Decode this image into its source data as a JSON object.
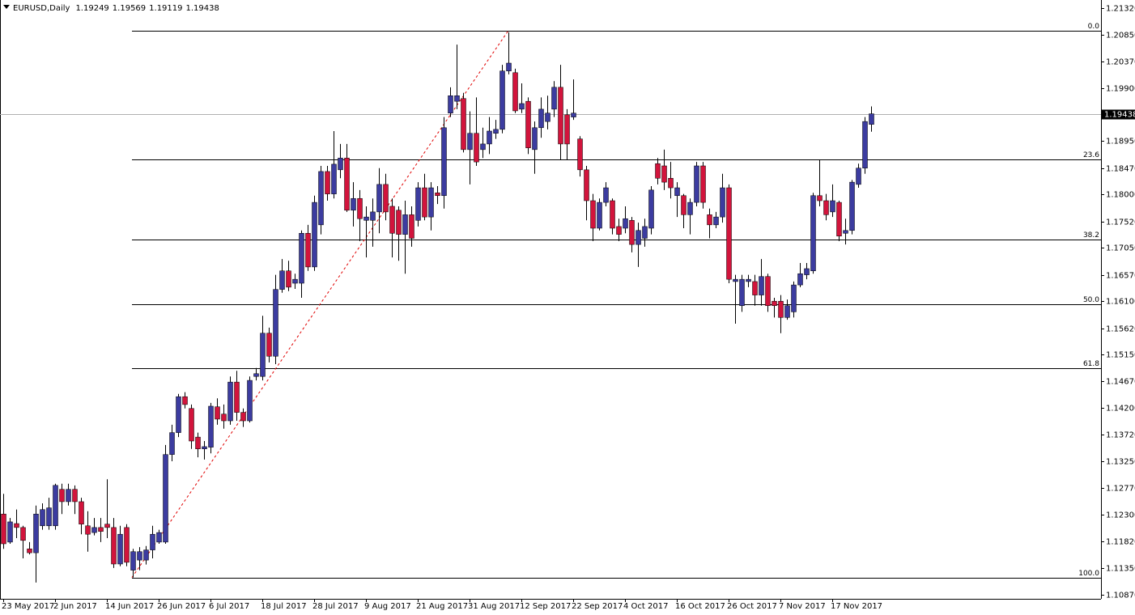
{
  "chart_data": {
    "type": "candlestick",
    "title": "EURUSD,Daily",
    "header_values": [
      1.19249,
      1.19569,
      1.19119,
      1.19438
    ],
    "current_price": 1.19438,
    "up_color": "#3c3ca0",
    "down_color": "#d2143c",
    "ylim": [
      1.108,
      1.21464
    ],
    "yticks": [
      {
        "value": 1.2132,
        "label": "1.21320"
      },
      {
        "value": 1.2085,
        "label": "1.20850"
      },
      {
        "value": 1.2037,
        "label": "1.20370"
      },
      {
        "value": 1.199,
        "label": "1.19900"
      },
      {
        "value": 1.1895,
        "label": "1.18950"
      },
      {
        "value": 1.1847,
        "label": "1.18470"
      },
      {
        "value": 1.18,
        "label": "1.18000"
      },
      {
        "value": 1.1752,
        "label": "1.17520"
      },
      {
        "value": 1.1705,
        "label": "1.17050"
      },
      {
        "value": 1.1657,
        "label": "1.16570"
      },
      {
        "value": 1.161,
        "label": "1.16100"
      },
      {
        "value": 1.1562,
        "label": "1.15620"
      },
      {
        "value": 1.1515,
        "label": "1.15150"
      },
      {
        "value": 1.1467,
        "label": "1.14670"
      },
      {
        "value": 1.142,
        "label": "1.14200"
      },
      {
        "value": 1.1372,
        "label": "1.13720"
      },
      {
        "value": 1.1325,
        "label": "1.13250"
      },
      {
        "value": 1.1277,
        "label": "1.12770"
      },
      {
        "value": 1.123,
        "label": "1.12300"
      },
      {
        "value": 1.1182,
        "label": "1.11820"
      },
      {
        "value": 1.1135,
        "label": "1.11350"
      },
      {
        "value": 1.1087,
        "label": "1.10870"
      }
    ],
    "fib_levels": [
      {
        "label": "0.0",
        "value": 1.2092
      },
      {
        "label": "23.6",
        "value": 1.1862
      },
      {
        "label": "38.2",
        "value": 1.172
      },
      {
        "label": "50.0",
        "value": 1.1605
      },
      {
        "label": "61.8",
        "value": 1.149
      },
      {
        "label": "100.0",
        "value": 1.1118
      }
    ],
    "categories": [
      "23 May 2017",
      null,
      null,
      null,
      null,
      null,
      null,
      null,
      "2 Jun 2017",
      null,
      null,
      null,
      null,
      null,
      null,
      null,
      "14 Jun 2017",
      null,
      null,
      null,
      null,
      null,
      null,
      null,
      "26 Jun 2017",
      null,
      null,
      null,
      null,
      null,
      null,
      null,
      "6 Jul 2017",
      null,
      null,
      null,
      null,
      null,
      null,
      null,
      "18 Jul 2017",
      null,
      null,
      null,
      null,
      null,
      null,
      null,
      "28 Jul 2017",
      null,
      null,
      null,
      null,
      null,
      null,
      null,
      "9 Aug 2017",
      null,
      null,
      null,
      null,
      null,
      null,
      null,
      "21 Aug 2017",
      null,
      null,
      null,
      null,
      null,
      null,
      null,
      "31 Aug 2017",
      null,
      null,
      null,
      null,
      null,
      null,
      null,
      "12 Sep 2017",
      null,
      null,
      null,
      null,
      null,
      null,
      null,
      "22 Sep 2017",
      null,
      null,
      null,
      null,
      null,
      null,
      null,
      "4 Oct 2017",
      null,
      null,
      null,
      null,
      null,
      null,
      null,
      "16 Oct 2017",
      null,
      null,
      null,
      null,
      null,
      null,
      null,
      "26 Oct 2017",
      null,
      null,
      null,
      null,
      null,
      null,
      null,
      "7 Nov 2017",
      null,
      null,
      null,
      null,
      null,
      null,
      null,
      "17 Nov 2017",
      null,
      null,
      null,
      null,
      null,
      null
    ],
    "open": [
      1.1231,
      1.1181,
      1.1214,
      1.1207,
      1.1169,
      1.1162,
      1.121,
      1.121,
      1.121,
      1.1275,
      1.1253,
      1.1275,
      1.1253,
      1.121,
      1.1198,
      1.1207,
      1.1213,
      1.1207,
      1.1142,
      1.1207,
      1.1131,
      1.1149,
      1.1149,
      1.1167,
      1.1181,
      1.1181,
      1.1337,
      1.1376,
      1.144,
      1.1419,
      1.1368,
      1.1347,
      1.135,
      1.1422,
      1.1409,
      1.1397,
      1.1466,
      1.1412,
      1.1397,
      1.1476,
      1.1476,
      1.1553,
      1.1512,
      1.1631,
      1.1664,
      1.1642,
      1.1642,
      1.1731,
      1.1671,
      1.1746,
      1.1841,
      1.1801,
      1.1844,
      1.1865,
      1.1772,
      1.1793,
      1.1754,
      1.1754,
      1.1769,
      1.1818,
      1.1779,
      1.1772,
      1.1729,
      1.1764,
      1.1754,
      1.1812,
      1.176,
      1.1803,
      1.1798,
      1.1945,
      1.1966,
      1.1971,
      1.188,
      1.1909,
      1.188,
      1.189,
      1.1909,
      1.1916,
      1.202,
      1.2017,
      1.1952,
      1.1966,
      1.188,
      1.1919,
      1.193,
      1.1952,
      1.1991,
      1.1942,
      1.1938,
      1.1899,
      1.1844,
      1.1789,
      1.174,
      1.1786,
      1.1789,
      1.1743,
      1.174,
      1.1754,
      1.1711,
      1.1722,
      1.174,
      1.1855,
      1.1851,
      1.1829,
      1.1798,
      1.1798,
      1.1764,
      1.1786,
      1.1851,
      1.1764,
      1.1746,
      1.176,
      1.1812,
      1.1645,
      1.1602,
      1.1645,
      1.1645,
      1.1621,
      1.1654,
      1.161,
      1.161,
      1.1581,
      1.1591,
      1.1639,
      1.1657,
      1.1664,
      1.1798,
      1.1789,
      1.1769,
      1.1786,
      1.1731,
      1.1736,
      1.1818,
      1.1847,
      1.19249
    ],
    "high": [
      1.1267,
      1.1224,
      1.1239,
      1.121,
      1.1181,
      1.1246,
      1.125,
      1.126,
      1.1285,
      1.1285,
      1.1285,
      1.1282,
      1.126,
      1.1236,
      1.1224,
      1.1224,
      1.1293,
      1.1224,
      1.121,
      1.1213,
      1.1169,
      1.1172,
      1.1174,
      1.121,
      1.1203,
      1.1354,
      1.139,
      1.1445,
      1.1448,
      1.1426,
      1.1376,
      1.1361,
      1.1429,
      1.1437,
      1.1426,
      1.1476,
      1.1486,
      1.1419,
      1.1476,
      1.1491,
      1.1584,
      1.1563,
      1.1657,
      1.1685,
      1.1682,
      1.1659,
      1.1736,
      1.1746,
      1.1798,
      1.1851,
      1.1851,
      1.1913,
      1.189,
      1.189,
      1.1822,
      1.1808,
      1.1779,
      1.1793,
      1.1847,
      1.1837,
      1.1793,
      1.1779,
      1.1789,
      1.1779,
      1.1822,
      1.1837,
      1.1822,
      1.1815,
      1.1938,
      1.1991,
      1.2067,
      1.1981,
      1.1948,
      1.1973,
      1.1919,
      1.1938,
      1.1933,
      1.2031,
      1.2089,
      1.2024,
      1.1998,
      1.1973,
      1.193,
      1.1973,
      1.1976,
      1.2002,
      1.2031,
      1.1952,
      1.2005,
      1.1904,
      1.1851,
      1.1801,
      1.1793,
      1.1822,
      1.1793,
      1.1757,
      1.1779,
      1.176,
      1.175,
      1.1757,
      1.1815,
      1.1865,
      1.188,
      1.1858,
      1.1822,
      1.1801,
      1.1793,
      1.1858,
      1.1858,
      1.1775,
      1.1769,
      1.1837,
      1.1818,
      1.1657,
      1.1657,
      1.1657,
      1.1657,
      1.1685,
      1.1659,
      1.1616,
      1.1621,
      1.1613,
      1.1645,
      1.1678,
      1.1678,
      1.1803,
      1.1861,
      1.1801,
      1.1818,
      1.1789,
      1.1757,
      1.1826,
      1.1855,
      1.1938,
      1.19569
    ],
    "low": [
      1.1169,
      1.1178,
      1.1188,
      1.1152,
      1.1159,
      1.1109,
      1.1203,
      1.1203,
      1.1203,
      1.1231,
      1.1246,
      1.1231,
      1.1195,
      1.1164,
      1.1193,
      1.1181,
      1.1188,
      1.1135,
      1.1138,
      1.1138,
      1.1118,
      1.1131,
      1.1141,
      1.1152,
      1.1178,
      1.1178,
      1.1325,
      1.1368,
      1.1419,
      1.1347,
      1.1332,
      1.1328,
      1.1339,
      1.139,
      1.1383,
      1.139,
      1.1397,
      1.1386,
      1.1394,
      1.1469,
      1.1469,
      1.1501,
      1.1498,
      1.1625,
      1.1628,
      1.1632,
      1.1616,
      1.1664,
      1.1664,
      1.1729,
      1.1789,
      1.1793,
      1.1829,
      1.1769,
      1.1743,
      1.1717,
      1.1688,
      1.1707,
      1.1731,
      1.1754,
      1.1688,
      1.1682,
      1.1659,
      1.1707,
      1.1743,
      1.1754,
      1.1736,
      1.1783,
      1.1775,
      1.1938,
      1.1952,
      1.1875,
      1.1818,
      1.1851,
      1.1865,
      1.1872,
      1.1899,
      1.1909,
      1.2014,
      1.1945,
      1.1945,
      1.1872,
      1.1837,
      1.1901,
      1.1916,
      1.1938,
      1.1861,
      1.1861,
      1.1933,
      1.1832,
      1.1754,
      1.1717,
      1.1736,
      1.1779,
      1.1729,
      1.1717,
      1.1731,
      1.1697,
      1.1671,
      1.1707,
      1.1729,
      1.1818,
      1.1808,
      1.1793,
      1.176,
      1.174,
      1.1729,
      1.1779,
      1.1775,
      1.1722,
      1.174,
      1.175,
      1.1642,
      1.157,
      1.1591,
      1.1635,
      1.1602,
      1.1602,
      1.1591,
      1.1581,
      1.1553,
      1.1577,
      1.1581,
      1.1635,
      1.1649,
      1.1659,
      1.1779,
      1.1754,
      1.176,
      1.1717,
      1.1711,
      1.1729,
      1.1812,
      1.1837,
      1.19119
    ],
    "close": [
      1.1178,
      1.1217,
      1.1207,
      1.1184,
      1.1162,
      1.1231,
      1.1239,
      1.1242,
      1.1282,
      1.1253,
      1.1275,
      1.1253,
      1.1213,
      1.1195,
      1.1207,
      1.12,
      1.1207,
      1.1142,
      1.1195,
      1.1145,
      1.1164,
      1.1164,
      1.1167,
      1.1195,
      1.1198,
      1.1337,
      1.1376,
      1.144,
      1.1426,
      1.1361,
      1.1347,
      1.1351,
      1.1423,
      1.14,
      1.1397,
      1.1466,
      1.1412,
      1.1397,
      1.1469,
      1.1481,
      1.1553,
      1.1512,
      1.1631,
      1.1664,
      1.1635,
      1.1649,
      1.1731,
      1.1671,
      1.1786,
      1.1841,
      1.1801,
      1.1854,
      1.1865,
      1.1772,
      1.1793,
      1.1757,
      1.176,
      1.1769,
      1.1818,
      1.1769,
      1.1731,
      1.1729,
      1.1764,
      1.1722,
      1.1812,
      1.176,
      1.1812,
      1.1798,
      1.1919,
      1.1976,
      1.1976,
      1.188,
      1.1909,
      1.1858,
      1.189,
      1.1913,
      1.1916,
      1.202,
      1.2034,
      1.1949,
      1.1962,
      1.1883,
      1.1919,
      1.1952,
      1.1945,
      1.1991,
      1.189,
      1.189,
      1.1945,
      1.1844,
      1.1789,
      1.174,
      1.1786,
      1.1812,
      1.174,
      1.1729,
      1.1757,
      1.1711,
      1.1736,
      1.1743,
      1.1808,
      1.1829,
      1.1822,
      1.1812,
      1.1812,
      1.1764,
      1.1786,
      1.1851,
      1.1786,
      1.1746,
      1.176,
      1.1812,
      1.1649,
      1.1649,
      1.1649,
      1.1649,
      1.1621,
      1.1654,
      1.1602,
      1.1602,
      1.1581,
      1.1602,
      1.1639,
      1.1659,
      1.1668,
      1.1798,
      1.1789,
      1.1764,
      1.1789,
      1.1726,
      1.1736,
      1.1822,
      1.1847,
      1.193,
      1.19438
    ]
  }
}
